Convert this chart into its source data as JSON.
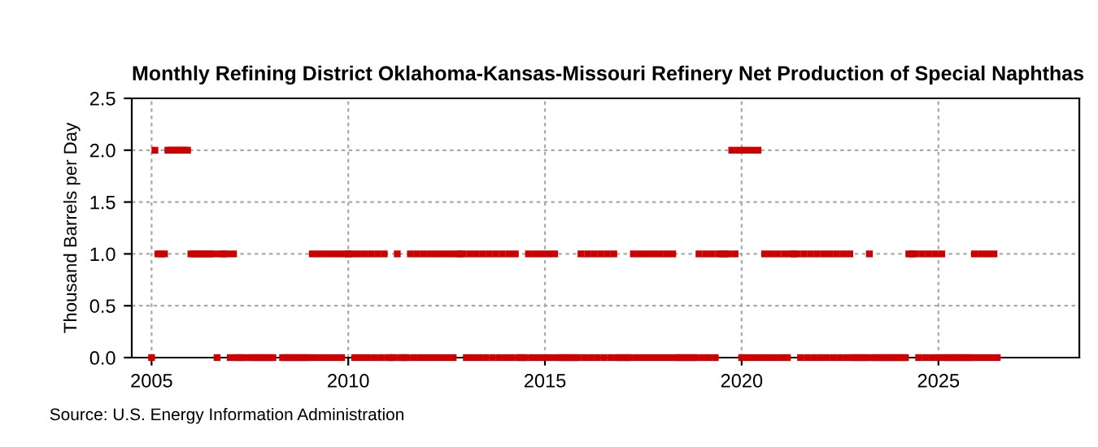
{
  "chart_data": {
    "type": "scatter",
    "title": "Monthly Refining District Oklahoma-Kansas-Missouri Refinery Net Production of Special Naphthas",
    "ylabel": "Thousand Barrels per Day",
    "annotations": [
      "Source: U.S. Energy Information Administration"
    ],
    "x": [
      "2005-01",
      "2005-02",
      "2005-03",
      "2005-04",
      "2005-05",
      "2005-06",
      "2005-07",
      "2005-08",
      "2005-09",
      "2005-10",
      "2005-11",
      "2005-12",
      "2006-01",
      "2006-02",
      "2006-03",
      "2006-04",
      "2006-05",
      "2006-06",
      "2006-07",
      "2006-08",
      "2006-09",
      "2006-10",
      "2006-11",
      "2006-12",
      "2007-01",
      "2007-02",
      "2007-03",
      "2007-04",
      "2007-05",
      "2007-06",
      "2007-07",
      "2007-08",
      "2007-09",
      "2007-10",
      "2007-11",
      "2007-12",
      "2008-01",
      "2008-02",
      "2008-03",
      "2008-04",
      "2008-05",
      "2008-06",
      "2008-07",
      "2008-08",
      "2008-09",
      "2008-10",
      "2008-11",
      "2008-12",
      "2009-01",
      "2009-02",
      "2009-03",
      "2009-04",
      "2009-05",
      "2009-06",
      "2009-07",
      "2009-08",
      "2009-09",
      "2009-10",
      "2009-11",
      "2009-12",
      "2010-01",
      "2010-02",
      "2010-03",
      "2010-04",
      "2010-05",
      "2010-06",
      "2010-07",
      "2010-08",
      "2010-09",
      "2010-10",
      "2010-11",
      "2010-12",
      "2011-01",
      "2011-02",
      "2011-03",
      "2011-04",
      "2011-05",
      "2011-06",
      "2011-07",
      "2011-08",
      "2011-09",
      "2011-10",
      "2011-11",
      "2011-12",
      "2012-01",
      "2012-02",
      "2012-03",
      "2012-04",
      "2012-05",
      "2012-06",
      "2012-07",
      "2012-08",
      "2012-09",
      "2012-10",
      "2012-11",
      "2012-12",
      "2013-01",
      "2013-02",
      "2013-03",
      "2013-04",
      "2013-05",
      "2013-06",
      "2013-07",
      "2013-08",
      "2013-09",
      "2013-10",
      "2013-11",
      "2013-12",
      "2014-01",
      "2014-02",
      "2014-03",
      "2014-04",
      "2014-05",
      "2014-06",
      "2014-07",
      "2014-08",
      "2014-09",
      "2014-10",
      "2014-11",
      "2014-12",
      "2015-01",
      "2015-02",
      "2015-03",
      "2015-04",
      "2015-05",
      "2015-06",
      "2015-07",
      "2015-08",
      "2015-09",
      "2015-10",
      "2015-11",
      "2015-12",
      "2016-01",
      "2016-02",
      "2016-03",
      "2016-04",
      "2016-05",
      "2016-06",
      "2016-07",
      "2016-08",
      "2016-09",
      "2016-10",
      "2016-11",
      "2016-12",
      "2017-01",
      "2017-02",
      "2017-03",
      "2017-04",
      "2017-05",
      "2017-06",
      "2017-07",
      "2017-08",
      "2017-09",
      "2017-10",
      "2017-11",
      "2017-12",
      "2018-01",
      "2018-02",
      "2018-03",
      "2018-04",
      "2018-05",
      "2018-06",
      "2018-07",
      "2018-08",
      "2018-09",
      "2018-10",
      "2018-11",
      "2018-12",
      "2019-01",
      "2019-02",
      "2019-03",
      "2019-04",
      "2019-05",
      "2019-06",
      "2019-07",
      "2019-08",
      "2019-09",
      "2019-10",
      "2019-11",
      "2019-12",
      "2020-01",
      "2020-02",
      "2020-03",
      "2020-04",
      "2020-05",
      "2020-06",
      "2020-07",
      "2020-08",
      "2020-09",
      "2020-10",
      "2020-11",
      "2020-12",
      "2021-01",
      "2021-02",
      "2021-03",
      "2021-04",
      "2021-05",
      "2021-06",
      "2021-07",
      "2021-08",
      "2021-09",
      "2021-10",
      "2021-11",
      "2021-12",
      "2022-01",
      "2022-02",
      "2022-03",
      "2022-04",
      "2022-05",
      "2022-06",
      "2022-07",
      "2022-08",
      "2022-09",
      "2022-10",
      "2022-11",
      "2022-12",
      "2023-01",
      "2023-02",
      "2023-03",
      "2023-04",
      "2023-05",
      "2023-06",
      "2023-07",
      "2023-08",
      "2023-09",
      "2023-10",
      "2023-11",
      "2023-12",
      "2024-01",
      "2024-02",
      "2024-03",
      "2024-04",
      "2024-05",
      "2024-06",
      "2024-07",
      "2024-08",
      "2024-09",
      "2024-10",
      "2024-11",
      "2024-12",
      "2025-01",
      "2025-02",
      "2025-03",
      "2025-04",
      "2025-05",
      "2025-06",
      "2025-07",
      "2025-08",
      "2025-09",
      "2025-10",
      "2025-11",
      "2025-12",
      "2026-01",
      "2026-02",
      "2026-03",
      "2026-04",
      "2026-05",
      "2026-06",
      "2026-07"
    ],
    "series": [
      {
        "color": "#cc0000",
        "values": [
          0,
          2,
          1,
          1,
          1,
          2,
          2,
          2,
          2,
          2,
          2,
          2,
          1,
          1,
          1,
          1,
          1,
          1,
          1,
          1,
          0,
          1,
          1,
          1,
          0,
          1,
          0,
          0,
          0,
          null,
          0,
          0,
          0,
          0,
          0,
          0,
          0,
          0,
          null,
          null,
          0,
          0,
          0,
          0,
          0,
          0,
          0,
          0,
          0,
          1,
          0,
          1,
          0,
          1,
          0,
          1,
          0,
          1,
          0,
          1,
          1,
          1,
          0,
          1,
          0,
          1,
          0,
          1,
          0,
          1,
          0,
          1,
          0,
          0,
          0,
          1,
          0,
          0,
          0,
          1,
          0,
          1,
          0,
          1,
          0,
          1,
          0,
          1,
          0,
          1,
          0,
          1,
          0,
          1,
          1,
          1,
          0,
          1,
          0,
          1,
          0,
          1,
          0,
          1,
          0,
          1,
          0,
          1,
          0,
          1,
          0,
          1,
          0,
          0,
          0,
          1,
          0,
          1,
          0,
          1,
          0,
          1,
          0,
          1,
          0,
          0,
          0,
          0,
          0,
          0,
          0,
          1,
          0,
          1,
          0,
          1,
          0,
          1,
          0,
          1,
          0,
          1,
          0,
          0,
          0,
          0,
          0,
          1,
          0,
          1,
          0,
          1,
          0,
          1,
          0,
          1,
          0,
          1,
          0,
          1,
          0,
          0,
          0,
          0,
          0,
          0,
          0,
          1,
          0,
          1,
          0,
          1,
          0,
          1,
          1,
          1,
          1,
          2,
          1,
          2,
          0,
          2,
          0,
          2,
          0,
          2,
          0,
          1,
          0,
          1,
          0,
          1,
          0,
          1,
          0,
          1,
          1,
          1,
          0,
          1,
          0,
          1,
          0,
          1,
          0,
          1,
          0,
          1,
          0,
          1,
          0,
          1,
          0,
          1,
          0,
          0,
          0,
          0,
          0,
          1,
          0,
          0,
          0,
          0,
          0,
          0,
          0,
          0,
          0,
          0,
          0,
          1,
          1,
          1,
          0,
          1,
          0,
          1,
          0,
          1,
          0,
          1,
          0,
          0,
          0,
          0,
          0,
          0,
          0,
          0,
          0,
          1,
          0,
          1,
          0,
          1,
          0,
          1,
          0
        ]
      }
    ],
    "xlim": [
      "2004-07",
      "2028-08"
    ],
    "xticks": [
      {
        "value": "2005-01",
        "label": "2005"
      },
      {
        "value": "2010-01",
        "label": "2010"
      },
      {
        "value": "2015-01",
        "label": "2015"
      },
      {
        "value": "2020-01",
        "label": "2020"
      },
      {
        "value": "2025-01",
        "label": "2025"
      }
    ],
    "ylim": [
      0,
      2.5
    ],
    "yticks": [
      {
        "value": 0,
        "label": "0.0"
      },
      {
        "value": 0.5,
        "label": "0.5"
      },
      {
        "value": 1,
        "label": "1.0"
      },
      {
        "value": 1.5,
        "label": "1.5"
      },
      {
        "value": 2,
        "label": "2.0"
      },
      {
        "value": 2.5,
        "label": "2.5"
      }
    ],
    "grid": true,
    "marker": "square"
  }
}
